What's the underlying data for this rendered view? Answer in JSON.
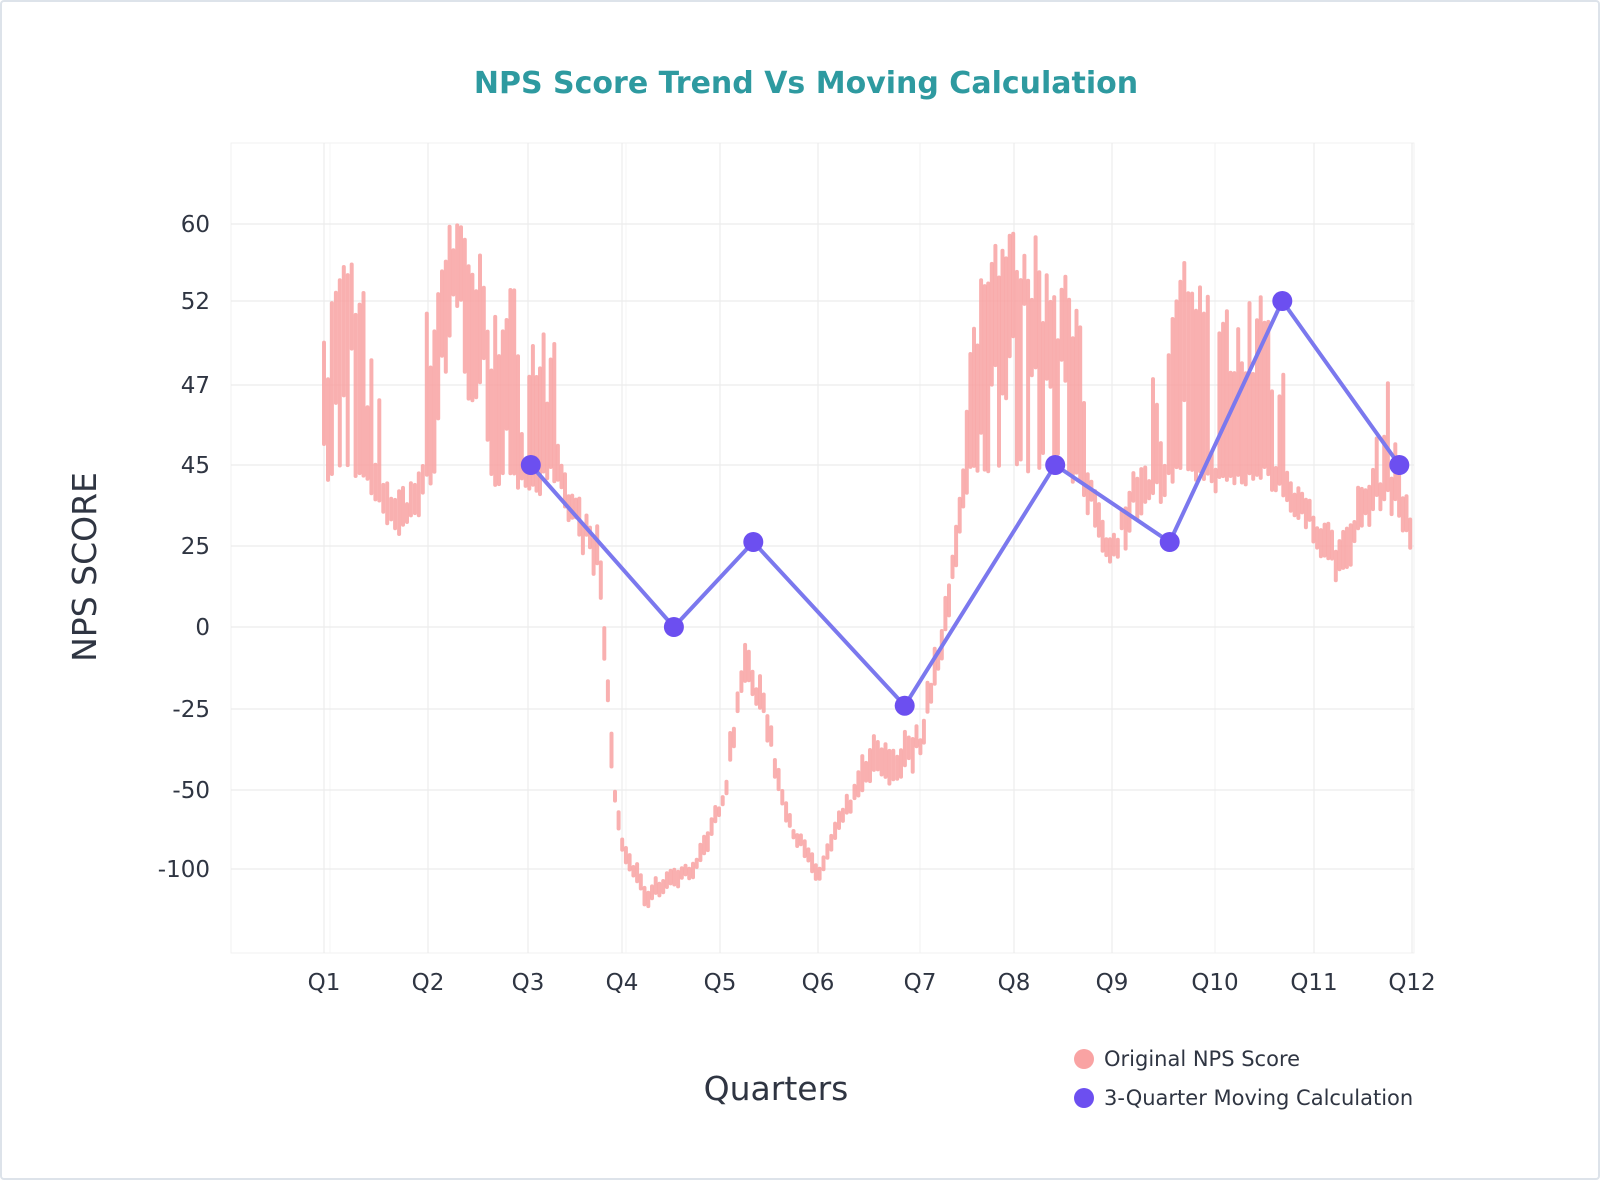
{
  "colors": {
    "title": "#2e9aa0",
    "original": "#f9a3a3",
    "moving_line": "#7b78ee",
    "moving_point": "#6c4ff0",
    "grid": "#ececec"
  },
  "chart_data": {
    "type": "line",
    "title": "NPS Score Trend Vs Moving Calculation",
    "xlabel": "Quarters",
    "ylabel": "NPS SCORE",
    "categories": [
      "Q1",
      "Q2",
      "Q3",
      "Q4",
      "Q5",
      "Q6",
      "Q7",
      "Q8",
      "Q9",
      "Q10",
      "Q11",
      "Q12"
    ],
    "yticks": [
      "60",
      "52",
      "47",
      "45",
      "25",
      "0",
      "-25",
      "-50",
      "-100"
    ],
    "grid": true,
    "legend_position": "bottom-right",
    "series": [
      {
        "name": "Original NPS Score",
        "style": "vertical-segments",
        "x": [
          1.0,
          1.25,
          1.5,
          1.75,
          2.0,
          2.25,
          2.5,
          2.75,
          3.0,
          3.25,
          3.5,
          3.75,
          4.0,
          4.25,
          4.5,
          4.75,
          5.0,
          5.25,
          5.5,
          5.75,
          6.0,
          6.25,
          6.5,
          6.75,
          7.0,
          7.25,
          7.5,
          7.75,
          8.0,
          8.25,
          8.5,
          8.75,
          9.0,
          9.25,
          9.5,
          9.75,
          10.0,
          10.25,
          10.5,
          10.75,
          11.0,
          11.25,
          11.5,
          11.75,
          12.0
        ],
        "values": [
          45,
          52,
          40,
          32,
          45,
          57,
          50,
          46,
          45,
          44,
          33,
          22,
          -85,
          -118,
          -105,
          -100,
          -60,
          -10,
          -30,
          -75,
          -105,
          -65,
          -40,
          -42,
          -35,
          0,
          45,
          52,
          52,
          51,
          50,
          40,
          23,
          40,
          42,
          50,
          44,
          45,
          47,
          40,
          30,
          20,
          35,
          42,
          30
        ]
      },
      {
        "name": "3-Quarter Moving Calculation",
        "x": [
          3.03,
          4.53,
          5.34,
          6.85,
          8.42,
          9.56,
          10.68,
          11.87
        ],
        "values": [
          45,
          0,
          26,
          -24,
          45,
          26,
          52,
          45
        ]
      }
    ]
  }
}
